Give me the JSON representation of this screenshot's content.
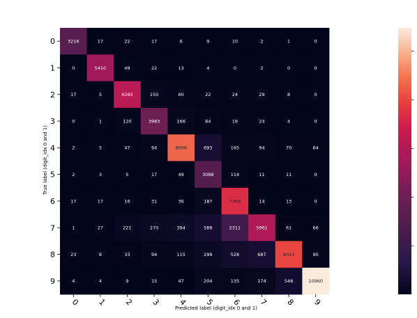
{
  "chart_data": {
    "type": "heatmap",
    "title": "",
    "xlabel": "Predicted label (digit_idx 0 and 1)",
    "ylabel": "True label (digit_idx 0 and 1)",
    "x_categories": [
      "0",
      "1",
      "2",
      "3",
      "4",
      "5",
      "6",
      "7",
      "8",
      "9"
    ],
    "y_categories": [
      "0",
      "1",
      "2",
      "3",
      "4",
      "5",
      "6",
      "7",
      "8",
      "9"
    ],
    "values": [
      [
        3216,
        17,
        22,
        17,
        6,
        9,
        10,
        2,
        1,
        0
      ],
      [
        0,
        5410,
        49,
        22,
        13,
        4,
        0,
        2,
        0,
        0
      ],
      [
        17,
        5,
        6285,
        150,
        60,
        22,
        24,
        29,
        8,
        0
      ],
      [
        0,
        1,
        120,
        3983,
        166,
        84,
        18,
        24,
        4,
        0
      ],
      [
        2,
        5,
        47,
        94,
        8666,
        693,
        165,
        94,
        70,
        64
      ],
      [
        2,
        3,
        5,
        17,
        49,
        3088,
        114,
        11,
        11,
        0
      ],
      [
        17,
        17,
        16,
        31,
        36,
        187,
        7369,
        14,
        13,
        0
      ],
      [
        1,
        27,
        221,
        270,
        394,
        588,
        2311,
        5961,
        61,
        66
      ],
      [
        23,
        8,
        33,
        94,
        115,
        299,
        528,
        687,
        8023,
        90
      ],
      [
        4,
        4,
        9,
        15,
        47,
        204,
        135,
        174,
        548,
        10960
      ]
    ],
    "value_range": [
      0,
      10960
    ],
    "colormap": "rocket",
    "colorbar": true,
    "annotated": true
  }
}
